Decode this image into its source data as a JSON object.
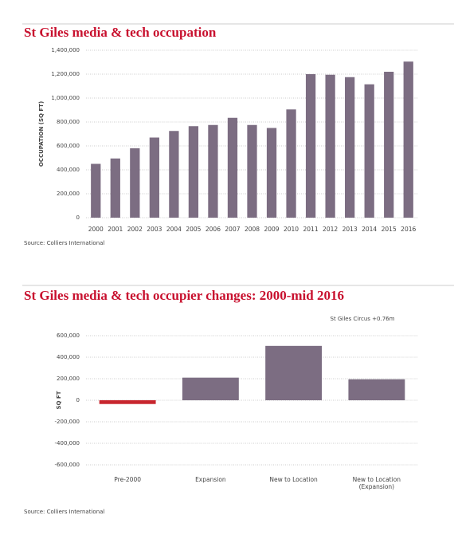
{
  "chart_data": [
    {
      "type": "bar",
      "title": "St Giles media & tech occupation",
      "y_label": "OCCUPATION (SQ FT)",
      "categories": [
        "2000",
        "2001",
        "2002",
        "2003",
        "2004",
        "2005",
        "2006",
        "2007",
        "2008",
        "2009",
        "2010",
        "2011",
        "2012",
        "2013",
        "2014",
        "2015",
        "2016"
      ],
      "values": [
        450000,
        495000,
        580000,
        670000,
        725000,
        765000,
        775000,
        835000,
        775000,
        750000,
        905000,
        1200000,
        1195000,
        1175000,
        1115000,
        1220000,
        1305000
      ],
      "color": "#7c6d82",
      "ylim": [
        0,
        1400000
      ],
      "yticks": [
        0,
        {
          "value": 200000,
          "label": "200,000"
        },
        {
          "value": 400000,
          "label": "400,000"
        },
        {
          "value": 600000,
          "label": "600,000"
        },
        {
          "value": 800000,
          "label": "800,000"
        },
        {
          "value": 1000000,
          "label": "1,000,000"
        },
        {
          "value": 1200000,
          "label": "1,200,000"
        },
        {
          "value": 1400000,
          "label": "1,400,000"
        }
      ],
      "grid": true,
      "source": "Source: Colliers International"
    },
    {
      "type": "bar",
      "title": "St Giles media & tech occupier changes: 2000-mid 2016",
      "y_label": "SQ FT",
      "annotation": "St Giles Circus +0.76m",
      "categories": [
        "Pre-2000",
        "Expansion",
        "New to Location",
        "New to Location (Expansion)"
      ],
      "values": [
        -35000,
        210000,
        505000,
        195000
      ],
      "colors": [
        "#c8262e",
        "#7c6d82",
        "#7c6d82",
        "#7c6d82"
      ],
      "ylim": [
        -600000,
        600000
      ],
      "yticks": [
        {
          "value": -600000,
          "label": "-600,000"
        },
        {
          "value": -400000,
          "label": "-400,000"
        },
        {
          "value": -200000,
          "label": "-200,000"
        },
        0,
        {
          "value": 200000,
          "label": "200,000"
        },
        {
          "value": 400000,
          "label": "400,000"
        },
        {
          "value": 600000,
          "label": "600,000"
        }
      ],
      "grid": true,
      "source": "Source: Colliers International"
    }
  ]
}
